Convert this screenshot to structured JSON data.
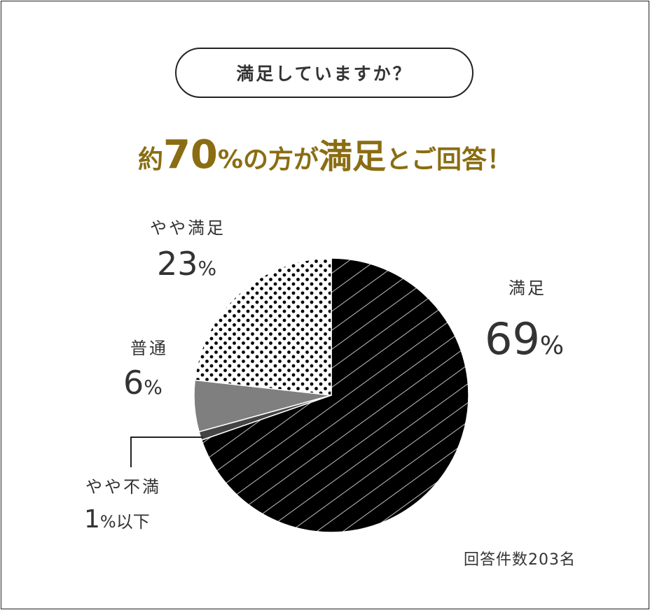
{
  "question": "満足していますか？",
  "headline": {
    "prefix": "約",
    "number": "70",
    "unit": "%",
    "mid": "の方が",
    "emphasis": "満足",
    "suffix": "とご回答！"
  },
  "colors": {
    "headline": "#8a6d12",
    "satisfied": "#000000",
    "somewhat_satisfied": "#ffffff",
    "neutral": "#7f7f7f",
    "somewhat_dissatisfied": "#444444",
    "text": "#333333"
  },
  "labels": {
    "satisfied": {
      "name": "満足",
      "value": "69",
      "unit": "%"
    },
    "somewhat_satisfied": {
      "name": "やや満足",
      "value": "23",
      "unit": "%"
    },
    "neutral": {
      "name": "普通",
      "value": "6",
      "unit": "%"
    },
    "somewhat_dissatisfied": {
      "name": "やや不満",
      "value": "1",
      "unit": "%",
      "suffix": "以下"
    }
  },
  "footnote": "回答件数203名",
  "chart_data": {
    "type": "pie",
    "title": "",
    "unit": "%",
    "slices": [
      {
        "label": "満足",
        "value": 69,
        "pattern": "diagonal-lines"
      },
      {
        "label": "やや不満",
        "value": 1,
        "pattern": "solid-dark"
      },
      {
        "label": "普通",
        "value": 6,
        "pattern": "solid-gray"
      },
      {
        "label": "やや満足",
        "value": 23,
        "pattern": "dots"
      }
    ],
    "start_angle": "top",
    "direction": "clockwise",
    "response_count": 203
  }
}
